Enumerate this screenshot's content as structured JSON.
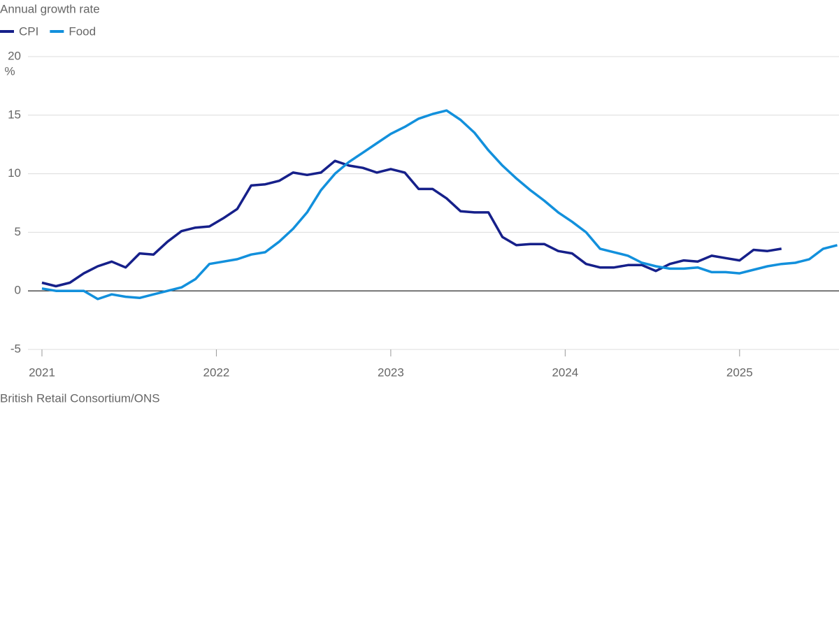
{
  "chart_data": {
    "type": "line",
    "title": "Annual growth rate",
    "y_unit": "%",
    "source": "British Retail Consortium/ONS",
    "x": [
      2021,
      2021.08,
      2021.16,
      2021.24,
      2021.32,
      2021.4,
      2021.48,
      2021.56,
      2021.64,
      2021.72,
      2021.8,
      2021.88,
      2021.96,
      2022.04,
      2022.12,
      2022.2,
      2022.28,
      2022.36,
      2022.44,
      2022.52,
      2022.6,
      2022.68,
      2022.76,
      2022.84,
      2022.92,
      2023,
      2023.08,
      2023.16,
      2023.24,
      2023.32,
      2023.4,
      2023.48,
      2023.56,
      2023.64,
      2023.72,
      2023.8,
      2023.88,
      2023.96,
      2024.04,
      2024.12,
      2024.2,
      2024.28,
      2024.36,
      2024.44,
      2024.52,
      2024.6,
      2024.68,
      2024.76,
      2024.84,
      2024.92,
      2025,
      2025.08,
      2025.16,
      2025.24,
      2025.32,
      2025.4,
      2025.48,
      2025.56
    ],
    "series": [
      {
        "name": "CPI",
        "color": "#16208a",
        "values": [
          0.7,
          0.4,
          0.7,
          1.5,
          2.1,
          2.5,
          2.0,
          3.2,
          3.1,
          4.2,
          5.1,
          5.4,
          5.5,
          6.2,
          7.0,
          9.0,
          9.1,
          9.4,
          10.1,
          9.9,
          10.1,
          11.1,
          10.7,
          10.5,
          10.1,
          10.4,
          10.1,
          8.7,
          8.7,
          7.9,
          6.8,
          6.7,
          6.7,
          4.6,
          3.9,
          4.0,
          4.0,
          3.4,
          3.2,
          2.3,
          2.0,
          2.0,
          2.2,
          2.2,
          1.7,
          2.3,
          2.6,
          2.5,
          3.0,
          2.8,
          2.6,
          3.5,
          3.4,
          3.6,
          null,
          null,
          null,
          null
        ]
      },
      {
        "name": "Food",
        "color": "#1290dc",
        "values": [
          0.2,
          0.0,
          0.0,
          0.0,
          -0.7,
          -0.3,
          -0.5,
          -0.6,
          -0.3,
          0.0,
          0.3,
          1.0,
          2.3,
          2.5,
          2.7,
          3.1,
          3.3,
          4.2,
          5.3,
          6.7,
          8.6,
          10.0,
          11.0,
          11.8,
          12.6,
          13.4,
          14.0,
          14.7,
          15.1,
          15.4,
          14.6,
          13.5,
          12.0,
          10.7,
          9.6,
          8.6,
          7.7,
          6.7,
          5.9,
          5.0,
          3.6,
          3.3,
          3.0,
          2.4,
          2.1,
          1.9,
          1.9,
          2.0,
          1.6,
          1.6,
          1.5,
          1.8,
          2.1,
          2.3,
          2.4,
          2.7,
          3.6,
          3.9
        ]
      }
    ],
    "xlim": [
      2021,
      2025.57
    ],
    "xticks": [
      2021,
      2022,
      2023,
      2024,
      2025
    ],
    "ylim": [
      -5,
      20
    ],
    "yticks": [
      -5,
      0,
      5,
      10,
      15,
      20
    ],
    "grid": true
  }
}
